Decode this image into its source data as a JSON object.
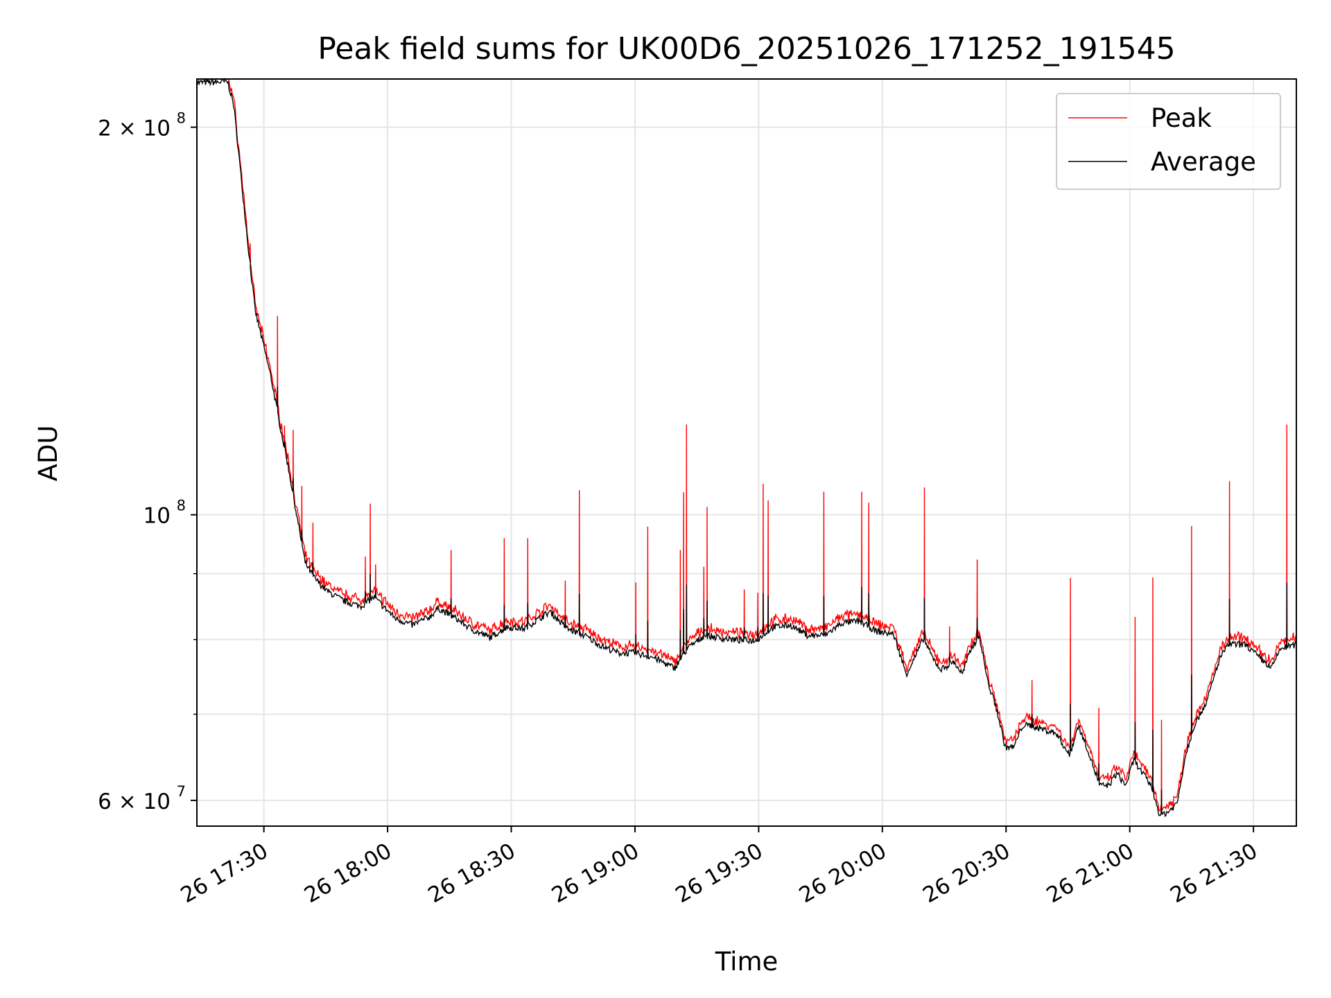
{
  "chart_data": {
    "type": "line",
    "title": "Peak field sums for UK00D6_20251026_171252_191545",
    "xlabel": "Time",
    "ylabel": "ADU",
    "x_unit": "minutes after 17:00 on day 26",
    "y_unit": "millions of ADU",
    "yscale": "log",
    "xlim": [
      13.75,
      280.4
    ],
    "ylim": [
      57.3,
      218
    ],
    "grid": true,
    "legend_position": "top-right",
    "x_ticks": [
      {
        "t": 30,
        "label": "26 17:30"
      },
      {
        "t": 60,
        "label": "26 18:00"
      },
      {
        "t": 90,
        "label": "26 18:30"
      },
      {
        "t": 120,
        "label": "26 19:00"
      },
      {
        "t": 150,
        "label": "26 19:30"
      },
      {
        "t": 180,
        "label": "26 20:00"
      },
      {
        "t": 210,
        "label": "26 20:30"
      },
      {
        "t": 240,
        "label": "26 21:00"
      },
      {
        "t": 270,
        "label": "26 21:30"
      }
    ],
    "y_ticks": [
      {
        "v": 200,
        "mant": "2",
        "exp": "8"
      },
      {
        "v": 100,
        "mant": "",
        "exp": "8"
      },
      {
        "v": 60,
        "mant": "6",
        "exp": "7"
      }
    ],
    "y_minor": [
      70,
      80,
      90
    ],
    "series": [
      {
        "name": "Peak",
        "color": "#ff0000"
      },
      {
        "name": "Average",
        "color": "#000000"
      }
    ],
    "average": {
      "t": [
        13.75,
        21.25,
        22.7,
        24.4,
        26.5,
        27.9,
        30,
        31.7,
        33.75,
        35.8,
        38,
        40,
        42.1,
        45.2,
        49.4,
        53.5,
        56.7,
        58.75,
        61.9,
        66,
        70.2,
        72.3,
        76.5,
        80.6,
        84.8,
        89,
        93.1,
        99.4,
        103.5,
        107.7,
        111.9,
        116,
        120.2,
        124.4,
        129.6,
        132.7,
        136.9,
        141,
        145.2,
        149.4,
        153.5,
        157.7,
        161.9,
        166,
        170.2,
        174.4,
        178.5,
        182.7,
        185.8,
        187.9,
        190,
        192.1,
        194.2,
        197.3,
        199.4,
        201.5,
        203.5,
        205.6,
        207.7,
        209.8,
        211.9,
        214,
        216,
        219.2,
        222.3,
        225.4,
        227.5,
        229.6,
        232.7,
        234.8,
        236.9,
        239,
        241,
        243.1,
        245.2,
        247.3,
        249.4,
        251.5,
        253.5,
        255.6,
        258.8,
        261.9,
        264,
        268.1,
        271.3,
        274.4,
        276.5,
        280.4
      ],
      "v": [
        216.6,
        216.9,
        208,
        184,
        158,
        144,
        135,
        128,
        118,
        109.5,
        99.8,
        91.8,
        89.4,
        87.3,
        85.7,
        84.9,
        86.3,
        85.0,
        83.1,
        82.1,
        83.3,
        84.6,
        83.1,
        81.4,
        80.3,
        81.8,
        81.6,
        84.1,
        81.6,
        80.6,
        79.1,
        78.1,
        78.1,
        77.5,
        76.0,
        78.7,
        80.6,
        80.2,
        79.9,
        79.9,
        81.8,
        82.1,
        80.6,
        80.6,
        82.4,
        82.7,
        81.2,
        80.8,
        75.2,
        77.5,
        80.2,
        77.5,
        75.8,
        76.9,
        75.2,
        78.7,
        80.6,
        74.1,
        70.7,
        66.0,
        66.0,
        68.6,
        68.6,
        68.1,
        67.6,
        65.0,
        68.6,
        66.0,
        61.6,
        61.6,
        63.0,
        61.6,
        64.5,
        63.0,
        61.6,
        58.4,
        58.8,
        59.7,
        65.0,
        68.6,
        71.8,
        77.5,
        79.3,
        79.3,
        77.5,
        76.0,
        78.7,
        79.3
      ]
    },
    "peak_spikes": {
      "t": [
        26.7,
        33.3,
        35,
        37.1,
        39.2,
        41.9,
        54.6,
        55.8,
        57.1,
        75.4,
        88.3,
        94,
        103.1,
        106.5,
        120.2,
        123.1,
        131,
        131.8,
        132.5,
        136.7,
        137.5,
        146.5,
        149.8,
        151.1,
        152.3,
        165.8,
        175,
        176.7,
        190.2,
        196.3,
        203,
        216.3,
        225.6,
        232.5,
        241.3,
        245.6,
        247.7,
        255,
        264.2,
        278.1
      ],
      "v": [
        162.5,
        142.7,
        117.3,
        116.4,
        105.3,
        98.6,
        92.8,
        102.0,
        91.5,
        93.9,
        95.9,
        95.9,
        88.9,
        104.5,
        88.6,
        97.9,
        93.9,
        104.1,
        117.5,
        91.1,
        101.4,
        87.5,
        87.0,
        105.7,
        102.6,
        104.2,
        104.2,
        102.2,
        105.0,
        81.9,
        92.3,
        74.4,
        89.3,
        70.8,
        83.3,
        89.4,
        69.3,
        98.0,
        106.2,
        117.5
      ]
    }
  }
}
